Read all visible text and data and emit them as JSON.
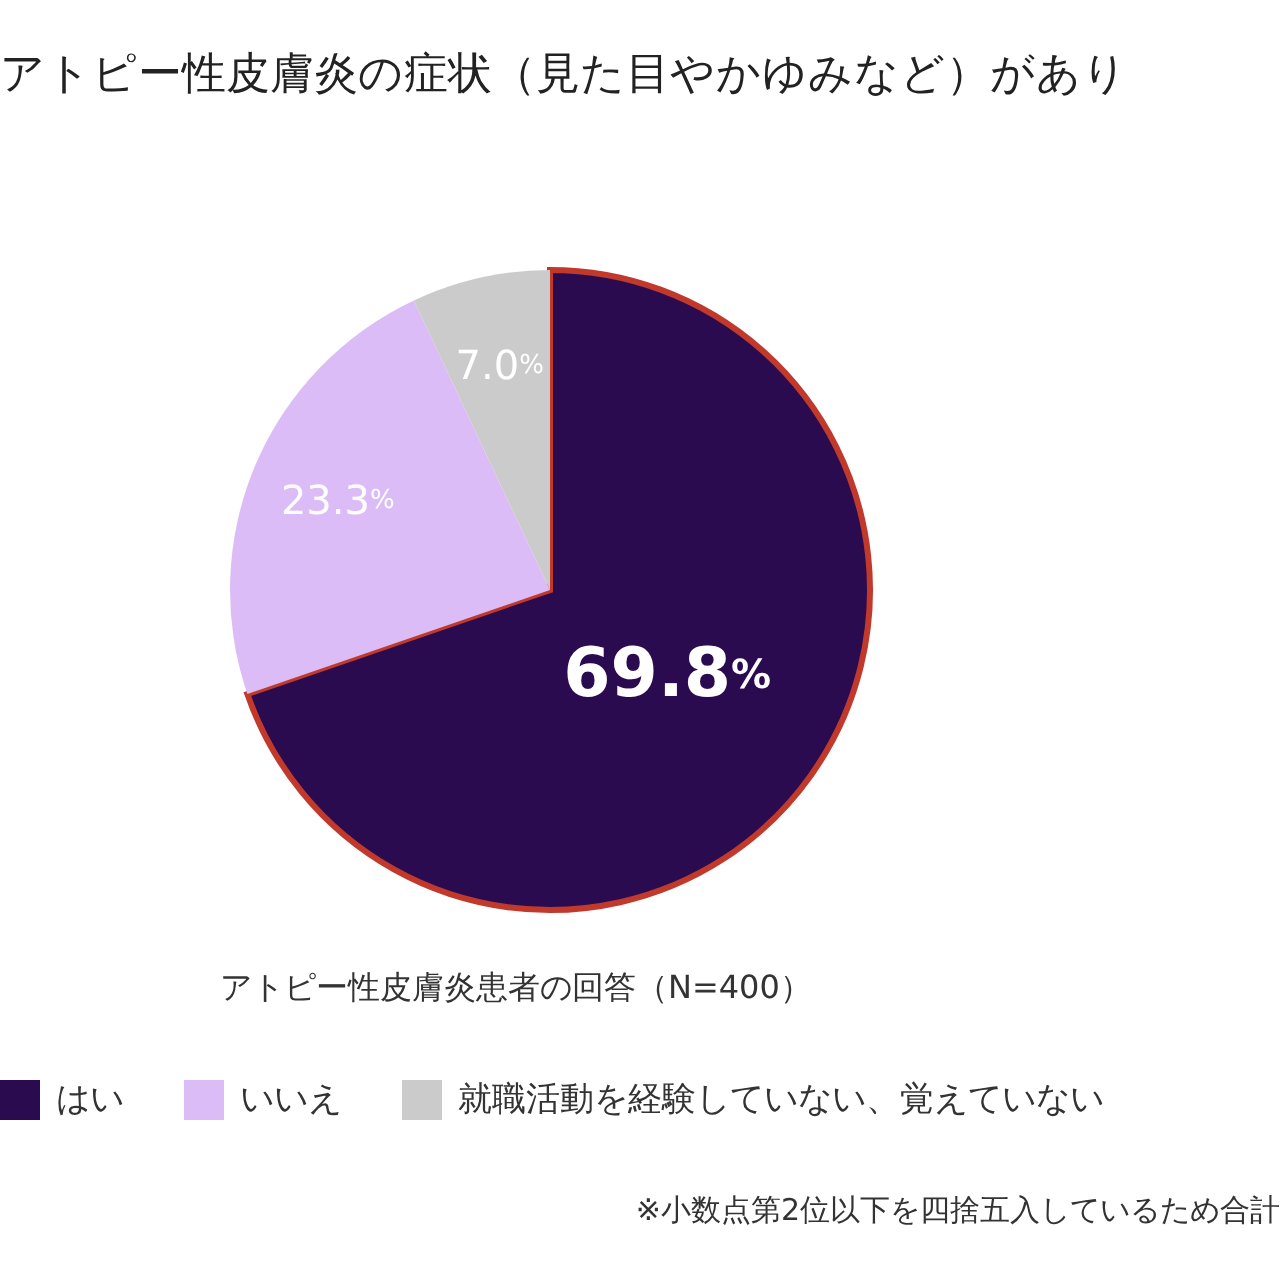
{
  "chart_data": {
    "type": "pie",
    "title": "アトピー性皮膚炎の症状（見た目やかゆみなど）があり",
    "subtitle": "アトピー性皮膚炎患者の回答（N=400）",
    "annotations": [
      "※小数点第2位以下を四捨五入しているため合計"
    ],
    "categories": [
      "はい",
      "いいえ",
      "就職活動を経験していない、覚えていない"
    ],
    "values": [
      69.8,
      23.3,
      7.0
    ],
    "value_labels": [
      "69.8%",
      "23.3%",
      "7.0%"
    ],
    "colors": [
      "#2b0b4f",
      "#dcbcf6",
      "#cbcbcb"
    ],
    "legend": "bottom"
  }
}
